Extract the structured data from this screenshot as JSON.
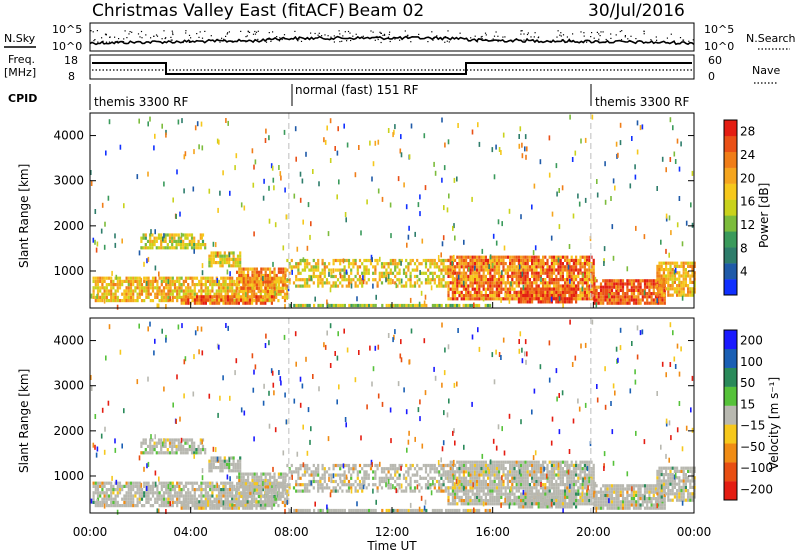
{
  "header": {
    "title": "Christmas Valley East (fitACF)",
    "beam": "Beam 02",
    "date": "30/Jul/2016"
  },
  "top_panels": {
    "nsky_label": "N.Sky",
    "nsky_ticks": [
      "10^5",
      "10^0"
    ],
    "nsearch_label": "N.Search",
    "freq_label_1": "Freq.",
    "freq_label_2": "[MHz]",
    "freq_ticks": [
      "18",
      "8"
    ],
    "nave_ticks": [
      "60",
      "0"
    ],
    "nave_label": "Nave",
    "cpid_label": "CPID",
    "cpid_segments": [
      "themis 3300 RF",
      "normal (fast) 151 RF",
      "themis 3300 RF"
    ]
  },
  "colors": {
    "power_scale": [
      "#1030ff",
      "#1f5aa8",
      "#2e7d6b",
      "#3a9a5b",
      "#7cbc3c",
      "#c9d21c",
      "#f6c81c",
      "#f5a51e",
      "#f07d18",
      "#ea5016",
      "#e41d12"
    ],
    "velocity_scale": [
      "#1a1aff",
      "#1a5fb4",
      "#2a8a5a",
      "#56c23a",
      "#b8b8b0",
      "#f6c81c",
      "#f08c14",
      "#e84e12",
      "#e41d12"
    ],
    "dashed_line": "#c8c8c8"
  },
  "chart_data": [
    {
      "type": "heatmap",
      "name": "Power",
      "ylabel": "Slant Range [km]",
      "y_ticks": [
        "1000",
        "2000",
        "3000",
        "4000"
      ],
      "ylim": [
        180,
        4500
      ],
      "x_ticks": [
        "00:00",
        "04:00",
        "08:00",
        "12:00",
        "16:00",
        "20:00",
        "00:00"
      ],
      "xlim": [
        0,
        24
      ],
      "colorbar_label": "Power [dB]",
      "colorbar_ticks": [
        "4",
        "8",
        "12",
        "16",
        "20",
        "24",
        "28"
      ],
      "colorbar_range": [
        0,
        30
      ],
      "dashed_times": [
        7.9,
        19.9
      ]
    },
    {
      "type": "heatmap",
      "name": "Velocity",
      "ylabel": "Slant Range [km]",
      "y_ticks": [
        "1000",
        "2000",
        "3000",
        "4000"
      ],
      "ylim": [
        180,
        4500
      ],
      "x_ticks": [
        "00:00",
        "04:00",
        "08:00",
        "12:00",
        "16:00",
        "20:00",
        "00:00"
      ],
      "xlim": [
        0,
        24
      ],
      "xlabel": "Time UT",
      "colorbar_label": "Velocity [m s⁻¹]",
      "colorbar_ticks": [
        "200",
        "100",
        "50",
        "15",
        "−15",
        "−50",
        "−100",
        "−200"
      ],
      "dashed_times": [
        7.9,
        19.9
      ]
    }
  ]
}
